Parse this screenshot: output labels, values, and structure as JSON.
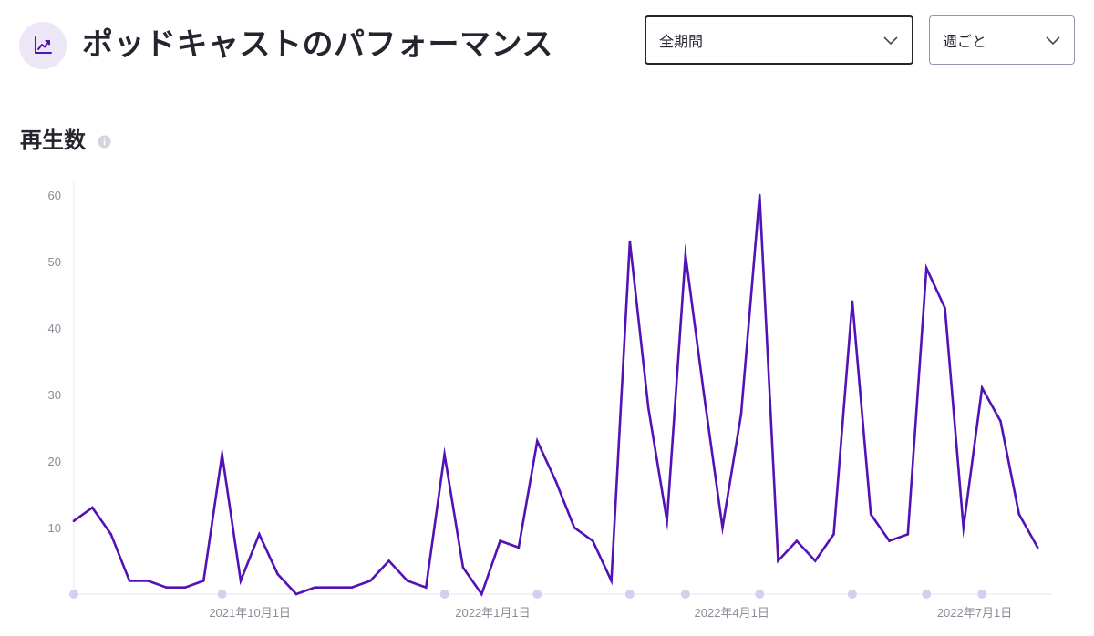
{
  "header": {
    "icon": "trending-up-icon",
    "title": "ポッドキャストのパフォーマンス"
  },
  "filters": {
    "period": {
      "value": "全期間",
      "icon": "chevron-down-icon"
    },
    "interval": {
      "value": "週ごと",
      "icon": "chevron-down-icon"
    }
  },
  "section": {
    "title": "再生数",
    "info_icon": "info-icon"
  },
  "colors": {
    "line": "#5212b5",
    "marker": "#d9cdef",
    "accent_bg": "#ece6f7",
    "grid": "#e7e5ec",
    "tick": "#8e8a97"
  },
  "chart_data": {
    "type": "line",
    "x_unit": "week",
    "start_date": "2021-07-26",
    "ylim": [
      0,
      60
    ],
    "y_ticks": [
      10,
      20,
      30,
      40,
      50,
      60
    ],
    "x_ticks": [
      {
        "label": "2021年10月1日",
        "week_index": 9.5
      },
      {
        "label": "2022年1月1日",
        "week_index": 22.6
      },
      {
        "label": "2022年4月1日",
        "week_index": 35.5
      },
      {
        "label": "2022年7月1日",
        "week_index": 48.6
      }
    ],
    "marker_week_indices": [
      0,
      8,
      20,
      25,
      30,
      33,
      37,
      42,
      46,
      49
    ],
    "values": [
      11,
      13,
      9,
      2,
      2,
      1,
      1,
      2,
      21,
      2,
      9,
      3,
      0,
      1,
      1,
      1,
      2,
      5,
      2,
      1,
      21,
      4,
      0,
      8,
      7,
      23,
      17,
      10,
      8,
      2,
      53,
      28,
      11,
      51,
      30,
      10,
      27,
      60,
      5,
      8,
      5,
      9,
      44,
      12,
      8,
      9,
      49,
      43,
      10,
      31,
      26,
      12,
      7
    ]
  }
}
